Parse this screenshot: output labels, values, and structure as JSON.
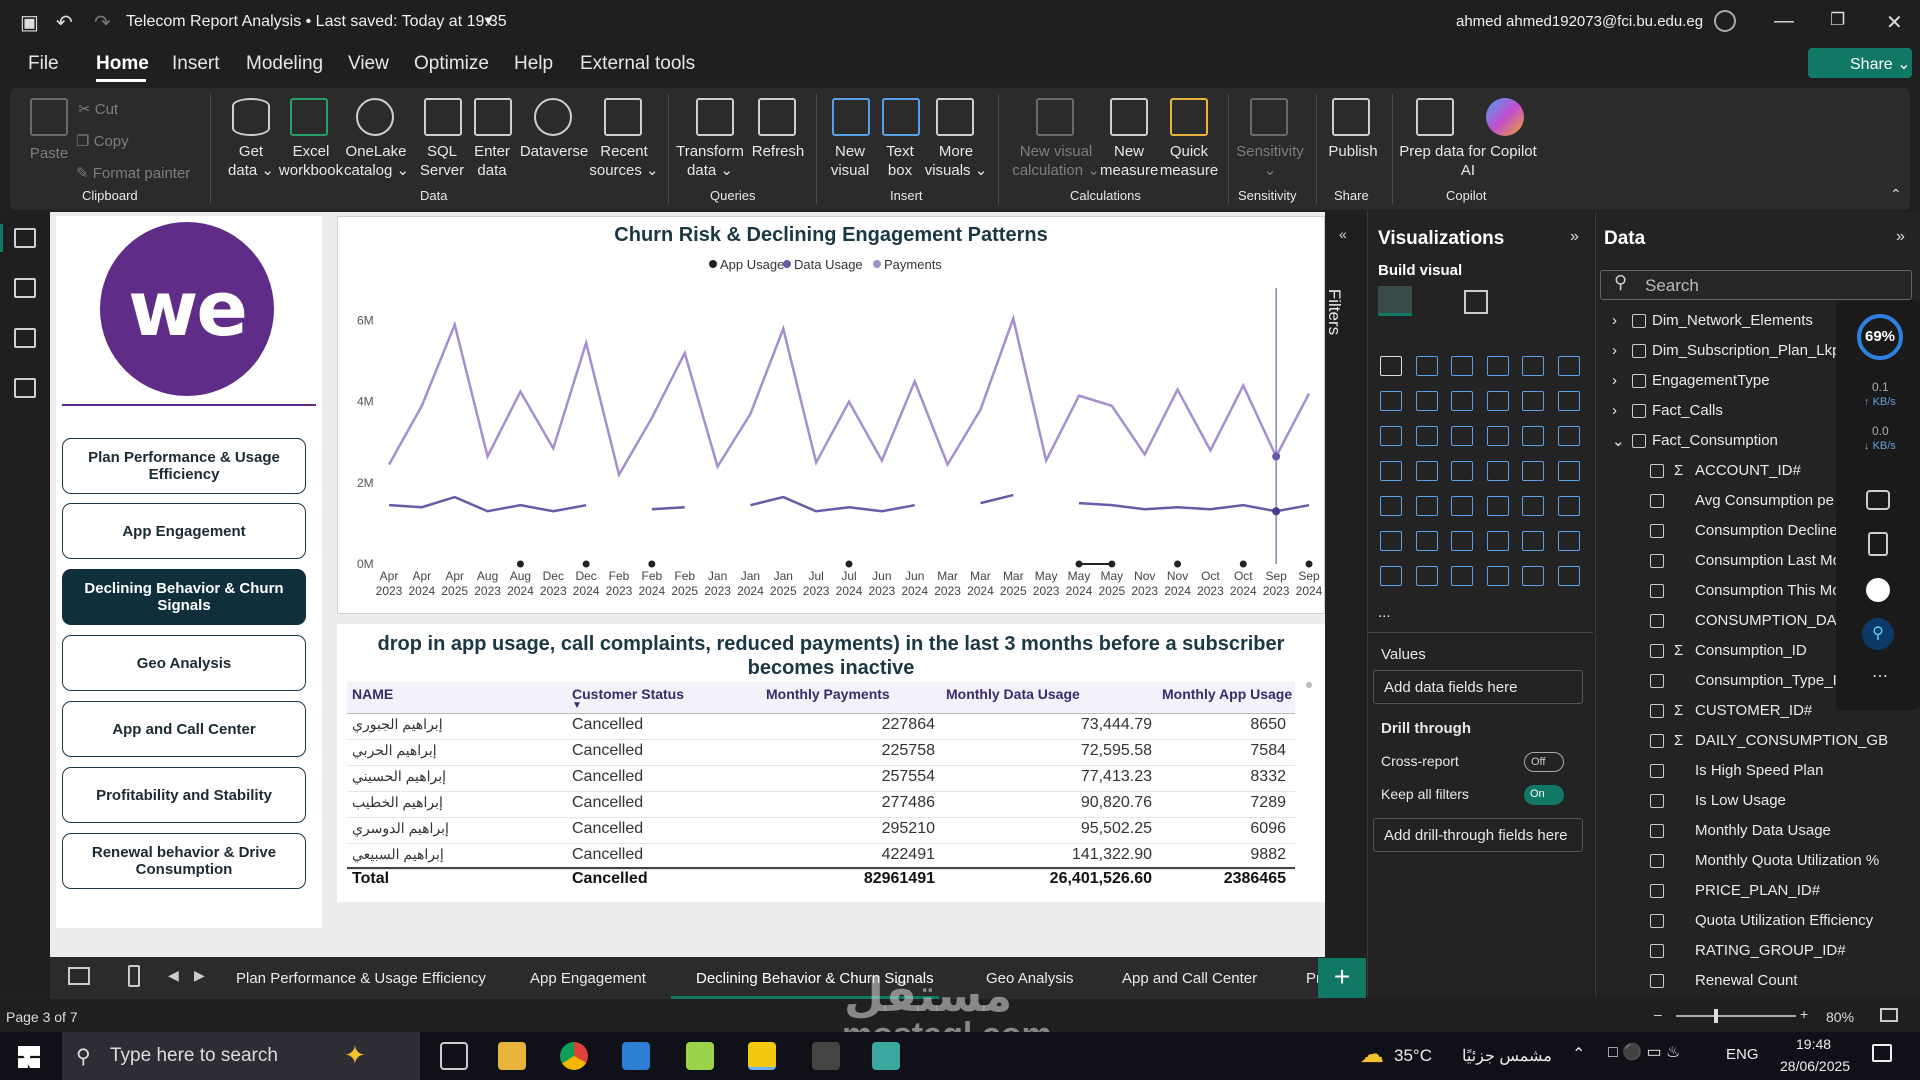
{
  "window": {
    "title": "Telecom Report Analysis • Last saved: Today at 19:35",
    "user": "ahmed ahmed192073@fci.bu.edu.eg"
  },
  "menu": [
    "File",
    "Home",
    "Insert",
    "Modeling",
    "View",
    "Optimize",
    "Help",
    "External tools"
  ],
  "share_label": "Share",
  "ribbon": {
    "clipboard": {
      "paste": "Paste",
      "cut": "Cut",
      "copy": "Copy",
      "format_painter": "Format painter",
      "group": "Clipboard"
    },
    "data": {
      "items": [
        "Get\ndata ⌄",
        "Excel\nworkbook",
        "OneLake\ncatalog ⌄",
        "SQL\nServer",
        "Enter\ndata",
        "Dataverse",
        "Recent\nsources ⌄"
      ],
      "group": "Data"
    },
    "queries": {
      "items": [
        "Transform\ndata ⌄",
        "Refresh"
      ],
      "group": "Queries"
    },
    "insert": {
      "items": [
        "New\nvisual",
        "Text\nbox",
        "More\nvisuals ⌄"
      ],
      "group": "Insert"
    },
    "calculations": {
      "items": [
        "New visual\ncalculation ⌄",
        "New\nmeasure",
        "Quick\nmeasure"
      ],
      "group": "Calculations"
    },
    "sensitivity": {
      "items": [
        "Sensitivity\n⌄"
      ],
      "group": "Sensitivity"
    },
    "share": {
      "items": [
        "Publish"
      ],
      "group": "Share"
    },
    "copilot": {
      "items": [
        "Prep data for Copilot\nAI"
      ],
      "group": "Copilot"
    }
  },
  "logo_text": "we",
  "nav_buttons": [
    {
      "label": "Plan Performance & Usage Efficiency",
      "selected": false
    },
    {
      "label": "App Engagement",
      "selected": false
    },
    {
      "label": "Declining Behavior & Churn Signals",
      "selected": true
    },
    {
      "label": "Geo Analysis",
      "selected": false
    },
    {
      "label": "App and Call Center",
      "selected": false
    },
    {
      "label": "Profitability and Stability",
      "selected": false
    },
    {
      "label": "Renewal behavior & Drive Consumption",
      "selected": false
    }
  ],
  "chart_data": {
    "type": "line",
    "title": "Churn Risk & Declining Engagement Patterns",
    "legend_position": "top-center",
    "yticks": [
      "0M",
      "2M",
      "4M",
      "6M"
    ],
    "ylim": [
      0,
      7000000
    ],
    "categories": [
      "Apr 2023",
      "Apr 2024",
      "Apr 2025",
      "Aug 2023",
      "Aug 2024",
      "Dec 2023",
      "Dec 2024",
      "Feb 2023",
      "Feb 2024",
      "Feb 2025",
      "Jan 2023",
      "Jan 2024",
      "Jan 2025",
      "Jul 2023",
      "Jul 2024",
      "Jun 2023",
      "Jun 2024",
      "Mar 2023",
      "Mar 2024",
      "Mar 2025",
      "May 2023",
      "May 2024",
      "May 2025",
      "Nov 2023",
      "Nov 2024",
      "Oct 2023",
      "Oct 2024",
      "Sep 2023",
      "Sep 2024"
    ],
    "series": [
      {
        "name": "Payments",
        "color": "#a58fd0",
        "values": [
          2450000,
          3900000,
          5900000,
          2650000,
          4250000,
          2850000,
          5450000,
          2200000,
          3600000,
          5200000,
          2400000,
          3700000,
          5800000,
          2500000,
          4000000,
          2550000,
          4500000,
          2450000,
          3800000,
          6050000,
          2550000,
          4150000,
          3900000,
          2700000,
          4300000,
          2800000,
          4400000,
          2650000,
          4200000
        ]
      },
      {
        "name": "Data Usage",
        "color": "#6a5aa8",
        "values": [
          1450000,
          1400000,
          1650000,
          1300000,
          1450000,
          1300000,
          1450000,
          null,
          1350000,
          1400000,
          null,
          1450000,
          1650000,
          1300000,
          1400000,
          1300000,
          1450000,
          null,
          1500000,
          1700000,
          null,
          1500000,
          1450000,
          1350000,
          1400000,
          1350000,
          1450000,
          1300000,
          1450000
        ]
      },
      {
        "name": "App Usage",
        "color": "#222222",
        "values": [
          null,
          null,
          null,
          null,
          0,
          null,
          0,
          null,
          0,
          null,
          null,
          null,
          null,
          null,
          0,
          null,
          null,
          null,
          null,
          null,
          null,
          0,
          0,
          null,
          0,
          null,
          0,
          null,
          0
        ]
      }
    ]
  },
  "table": {
    "title": "drop in app usage, call complaints, reduced payments) in the last 3 months before a subscriber becomes inactive",
    "headers": [
      "NAME",
      "Customer Status",
      "Monthly Payments",
      "Monthly Data Usage",
      "Monthly App Usage"
    ],
    "rows": [
      [
        "إبراهيم الجبوري",
        "Cancelled",
        "227864",
        "73,444.79",
        "8650"
      ],
      [
        "إبراهيم الحربي",
        "Cancelled",
        "225758",
        "72,595.58",
        "7584"
      ],
      [
        "إبراهيم الحسيني",
        "Cancelled",
        "257554",
        "77,413.23",
        "8332"
      ],
      [
        "إبراهيم الخطيب",
        "Cancelled",
        "277486",
        "90,820.76",
        "7289"
      ],
      [
        "إبراهيم الدوسري",
        "Cancelled",
        "295210",
        "95,502.25",
        "6096"
      ],
      [
        "إبراهيم السبيعي",
        "Cancelled",
        "422491",
        "141,322.90",
        "9882"
      ]
    ],
    "total": [
      "Total",
      "Cancelled",
      "82961491",
      "26,401,526.60",
      "2386465"
    ]
  },
  "filters_label": "Filters",
  "visualizations": {
    "title": "Visualizations",
    "build": "Build visual",
    "values_label": "Values",
    "values_placeholder": "Add data fields here",
    "drill_through": "Drill through",
    "cross_report": "Cross-report",
    "cross_report_state": "Off",
    "keep_filters": "Keep all filters",
    "keep_filters_state": "On",
    "drill_placeholder": "Add drill-through fields here",
    "more": "..."
  },
  "data_pane": {
    "title": "Data",
    "search_placeholder": "Search",
    "tables": [
      "Dim_Network_Elements",
      "Dim_Subscription_Plan_Lkp",
      "EngagementType",
      "Fact_Calls",
      "Fact_Consumption"
    ],
    "fields": [
      {
        "label": "ACCOUNT_ID#",
        "sigma": true
      },
      {
        "label": "Avg Consumption pe",
        "sigma": false
      },
      {
        "label": "Consumption Decline",
        "sigma": false
      },
      {
        "label": "Consumption Last Mo",
        "sigma": false
      },
      {
        "label": "Consumption This Mo",
        "sigma": false
      },
      {
        "label": "CONSUMPTION_DATE",
        "sigma": false
      },
      {
        "label": "Consumption_ID",
        "sigma": true
      },
      {
        "label": "Consumption_Type_ID",
        "sigma": false
      },
      {
        "label": "CUSTOMER_ID#",
        "sigma": true
      },
      {
        "label": "DAILY_CONSUMPTION_GB",
        "sigma": true
      },
      {
        "label": "Is High Speed Plan",
        "sigma": false
      },
      {
        "label": "Is Low Usage",
        "sigma": false
      },
      {
        "label": "Monthly Data Usage",
        "sigma": false
      },
      {
        "label": "Monthly Quota Utilization %",
        "sigma": false
      },
      {
        "label": "PRICE_PLAN_ID#",
        "sigma": false
      },
      {
        "label": "Quota Utilization Efficiency",
        "sigma": false
      },
      {
        "label": "RATING_GROUP_ID#",
        "sigma": false
      },
      {
        "label": "Renewal Count",
        "sigma": false
      }
    ]
  },
  "perf_widget": {
    "pct": "69%",
    "up": "0.1",
    "up_unit": "KB/s",
    "down": "0.0",
    "down_unit": "KB/s"
  },
  "page_tabs": [
    "Plan Performance & Usage Efficiency",
    "App Engagement",
    "Declining Behavior & Churn Signals",
    "Geo Analysis",
    "App and Call Center",
    "Pr"
  ],
  "status": {
    "page": "Page 3 of 7",
    "zoom": "80%"
  },
  "taskbar": {
    "search_placeholder": "Type here to search",
    "weather": "35°C",
    "weather_text": "مشمس جزئيًا",
    "lang": "ENG",
    "time": "19:48",
    "date": "28/06/2025"
  },
  "watermark": {
    "line1": "مستقل",
    "line2": "mostaql.com"
  }
}
